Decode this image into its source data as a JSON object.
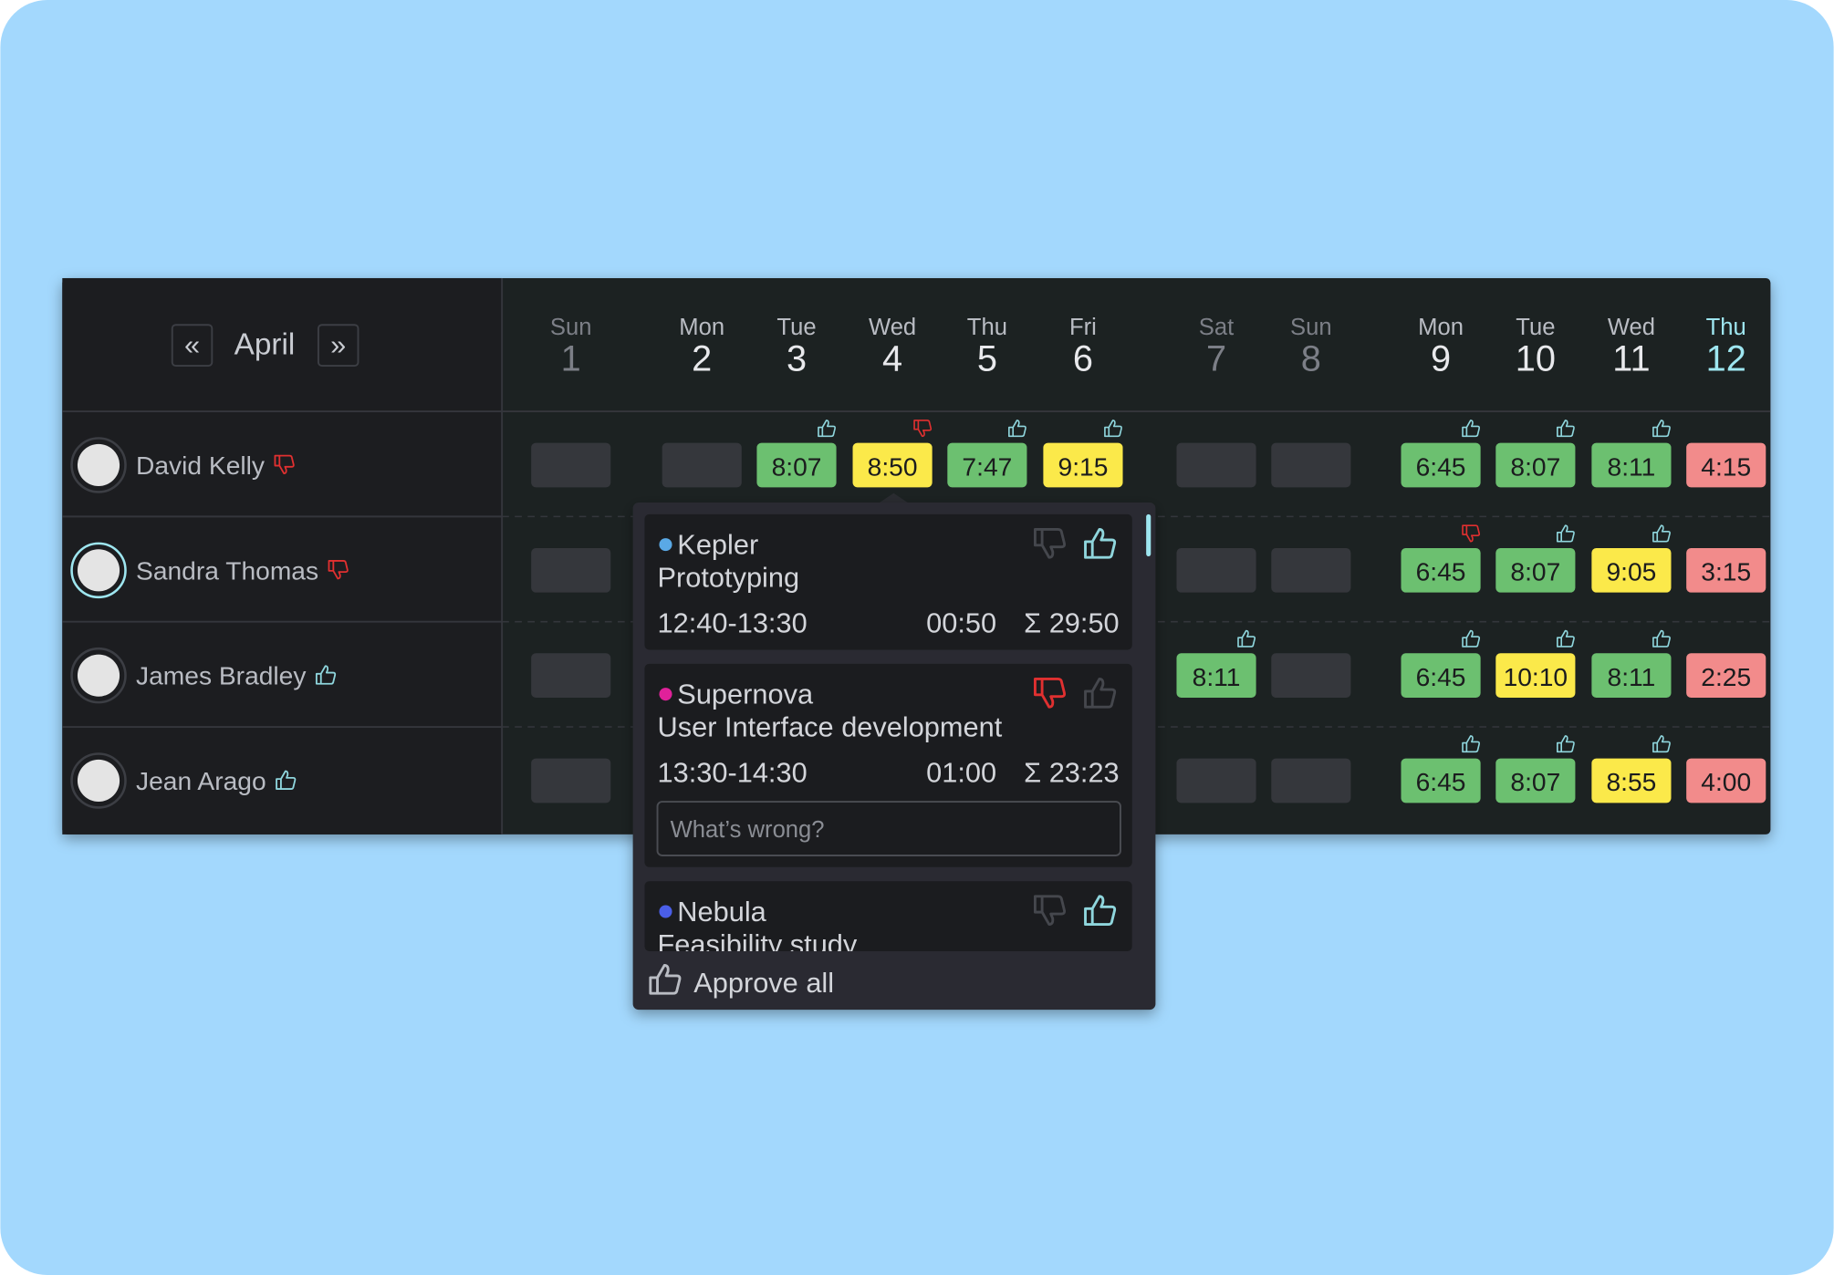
{
  "header": {
    "prev": "«",
    "month": "April",
    "next": "»"
  },
  "days": [
    {
      "weekday": "Sun",
      "day": 1,
      "weekend": true
    },
    {
      "weekday": "Mon",
      "day": 2
    },
    {
      "weekday": "Tue",
      "day": 3
    },
    {
      "weekday": "Wed",
      "day": 4
    },
    {
      "weekday": "Thu",
      "day": 5
    },
    {
      "weekday": "Fri",
      "day": 6
    },
    {
      "weekday": "Sat",
      "day": 7,
      "weekend": true
    },
    {
      "weekday": "Sun",
      "day": 8,
      "weekend": true
    },
    {
      "weekday": "Mon",
      "day": 9
    },
    {
      "weekday": "Tue",
      "day": 10
    },
    {
      "weekday": "Wed",
      "day": 11
    },
    {
      "weekday": "Thu",
      "day": 12,
      "today": true
    }
  ],
  "people": [
    {
      "name": "David Kelly",
      "approval": "down",
      "cells": [
        {
          "color": "#35373c"
        },
        {
          "color": "#35373c"
        },
        {
          "time": "8:07",
          "color": "#6cc070",
          "approval": "up"
        },
        {
          "time": "8:50",
          "color": "#fbe94a",
          "approval": "down"
        },
        {
          "time": "7:47",
          "color": "#6cc070",
          "approval": "up"
        },
        {
          "time": "9:15",
          "color": "#fbe94a",
          "approval": "up"
        },
        {
          "color": "#35373c"
        },
        {
          "color": "#35373c"
        },
        {
          "time": "6:45",
          "color": "#6cc070",
          "approval": "up"
        },
        {
          "time": "8:07",
          "color": "#6cc070",
          "approval": "up"
        },
        {
          "time": "8:11",
          "color": "#6cc070",
          "approval": "up"
        },
        {
          "time": "4:15",
          "color": "#f28b8b"
        }
      ]
    },
    {
      "name": "Sandra Thomas",
      "approval": "down",
      "cells": [
        {
          "color": "#35373c"
        },
        null,
        null,
        null,
        null,
        null,
        {
          "color": "#35373c"
        },
        {
          "color": "#35373c"
        },
        {
          "time": "6:45",
          "color": "#6cc070",
          "approval": "down"
        },
        {
          "time": "8:07",
          "color": "#6cc070",
          "approval": "up"
        },
        {
          "time": "9:05",
          "color": "#fbe94a",
          "approval": "up"
        },
        {
          "time": "3:15",
          "color": "#f28b8b"
        }
      ]
    },
    {
      "name": "James Bradley",
      "approval": "up",
      "cells": [
        {
          "color": "#35373c"
        },
        null,
        null,
        null,
        null,
        null,
        {
          "time": "8:11",
          "color": "#6cc070",
          "approval": "up"
        },
        {
          "color": "#35373c"
        },
        {
          "time": "6:45",
          "color": "#6cc070",
          "approval": "up"
        },
        {
          "time": "10:10",
          "color": "#fbe94a",
          "approval": "up"
        },
        {
          "time": "8:11",
          "color": "#6cc070",
          "approval": "up"
        },
        {
          "time": "2:25",
          "color": "#f28b8b"
        }
      ]
    },
    {
      "name": "Jean Arago",
      "approval": "up",
      "cells": [
        {
          "color": "#35373c"
        },
        null,
        null,
        null,
        null,
        null,
        {
          "color": "#35373c"
        },
        {
          "color": "#35373c"
        },
        {
          "time": "6:45",
          "color": "#6cc070",
          "approval": "up"
        },
        {
          "time": "8:07",
          "color": "#6cc070",
          "approval": "up"
        },
        {
          "time": "8:55",
          "color": "#fbe94a",
          "approval": "up"
        },
        {
          "time": "4:00",
          "color": "#f28b8b"
        }
      ]
    }
  ],
  "popup": {
    "entries": [
      {
        "project": "Kepler",
        "dot": "#5aa9e6",
        "task": "Prototyping",
        "span": "12:40-13:30",
        "duration": "00:50",
        "total": "Σ 29:50",
        "approval": "up"
      },
      {
        "project": "Supernova",
        "dot": "#e0219a",
        "task": "User Interface development",
        "span": "13:30-14:30",
        "duration": "01:00",
        "total": "Σ 23:23",
        "approval": "down",
        "comment_placeholder": "What’s wrong?"
      },
      {
        "project": "Nebula",
        "dot": "#4a5ee8",
        "task": "Feasibility study",
        "approval": "up"
      }
    ],
    "footer": "Approve all"
  }
}
